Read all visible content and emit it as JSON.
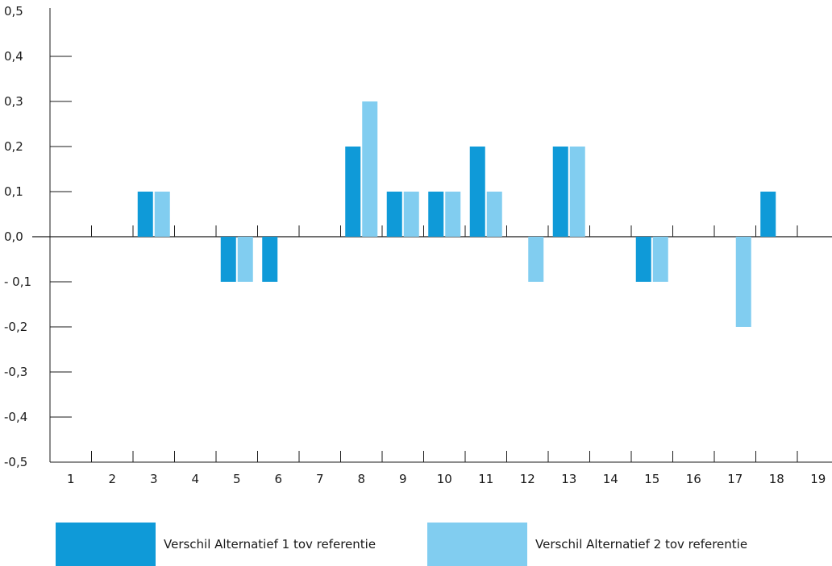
{
  "chart_data": {
    "type": "bar",
    "categories": [
      "1",
      "2",
      "3",
      "4",
      "5",
      "6",
      "7",
      "8",
      "9",
      "10",
      "11",
      "12",
      "13",
      "14",
      "15",
      "16",
      "17",
      "18",
      "19"
    ],
    "y_ticks": [
      "0,5",
      "0,4",
      "0,3",
      "0,2",
      "0,1",
      "0,0",
      "- 0,1",
      "-0,2",
      "-0,3",
      "-0,4",
      "-0,5"
    ],
    "ylim": [
      -0.5,
      0.5
    ],
    "series": [
      {
        "name": "Verschil Alternatief 1 tov referentie",
        "color": "#0f9ad8",
        "values": [
          0,
          0,
          0.1,
          0,
          -0.1,
          -0.1,
          0,
          0.2,
          0.1,
          0.1,
          0.2,
          0,
          0.2,
          0,
          -0.1,
          0,
          0,
          0.1,
          0
        ]
      },
      {
        "name": "Verschil Alternatief 2 tov referentie",
        "color": "#81cdf0",
        "values": [
          0,
          0,
          0.1,
          0,
          -0.1,
          0,
          0,
          0.3,
          0.1,
          0.1,
          0.1,
          -0.1,
          0.2,
          0,
          -0.1,
          0,
          -0.2,
          0,
          0
        ]
      }
    ],
    "grid": false,
    "legend_position": "bottom"
  }
}
